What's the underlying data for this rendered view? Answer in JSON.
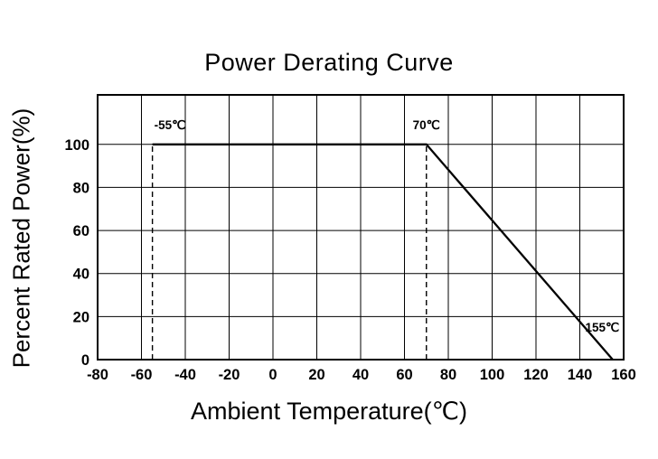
{
  "chart_data": {
    "type": "line",
    "title": "Power Derating Curve",
    "xlabel": "Ambient Temperature(℃)",
    "ylabel": "Percent Rated Power(%)",
    "xlim": [
      -80,
      160
    ],
    "ylim": [
      0,
      123
    ],
    "xticks": [
      -80,
      -60,
      -40,
      -20,
      0,
      20,
      40,
      60,
      80,
      100,
      120,
      140,
      160
    ],
    "yticks": [
      0,
      20,
      40,
      60,
      80,
      100
    ],
    "grid": true,
    "legend": "none",
    "line_color": "#000000",
    "series": [
      {
        "name": "power-derating",
        "points": [
          [
            -55,
            100
          ],
          [
            70,
            100
          ],
          [
            155,
            0
          ]
        ]
      }
    ],
    "reference_lines": [
      {
        "x": -55,
        "y0": 0,
        "y1": 100,
        "style": "dashed"
      },
      {
        "x": 70,
        "y0": 0,
        "y1": 100,
        "style": "dashed"
      }
    ],
    "annotations": [
      {
        "text": "-55℃",
        "x": -55,
        "y": 107,
        "anchor": "start",
        "dx": 2
      },
      {
        "text": "70℃",
        "x": 70,
        "y": 107,
        "anchor": "middle",
        "dx": 0
      },
      {
        "text": "155℃",
        "x": 158,
        "y": 13,
        "anchor": "end",
        "dx": 0
      }
    ]
  }
}
